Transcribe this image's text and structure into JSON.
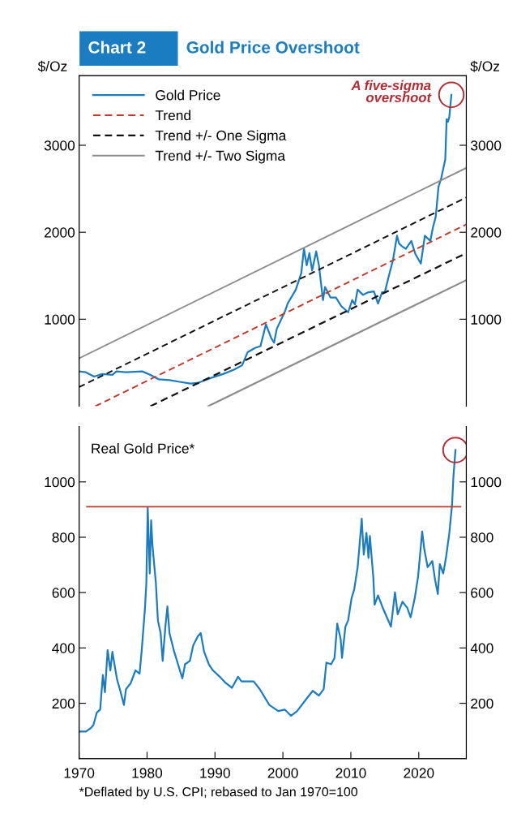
{
  "chart_data": [
    {
      "type": "line",
      "title": "Gold Price Overshoot",
      "annotations": [
        "Chart 2",
        {
          "text": "A five-sigma\novershoot",
          "x": 2024.8,
          "y": 3580
        }
      ],
      "ylabel": "$/Oz",
      "y2label": "$/Oz",
      "xlim": [
        1970,
        2027
      ],
      "ylim": [
        0,
        3800
      ],
      "yticks": [
        1000,
        2000,
        3000
      ],
      "y2lim": [
        0,
        3800
      ],
      "y2ticks": [
        1000,
        2000,
        3000
      ],
      "tick_labels": "y",
      "legend": "top left",
      "grid": false,
      "series": [
        {
          "name": "Gold Price",
          "color": "#1a7cc1",
          "line_style": "solid",
          "x": [
            1970.0,
            1971.0,
            1972.2,
            1973.4,
            1974.9,
            1975.5,
            1976.9,
            1979.3,
            1980.5,
            1981.7,
            1983.3,
            1984.8,
            1986.4,
            1987.6,
            1989.6,
            1991.2,
            1992.8,
            1994.0,
            1994.8,
            1995.9,
            1996.7,
            1997.5,
            1998.3,
            1998.7,
            1999.1,
            2000.3,
            2000.7,
            2001.9,
            2002.7,
            2003.1,
            2003.5,
            2003.9,
            2004.3,
            2004.9,
            2005.3,
            2005.9,
            2006.2,
            2007.0,
            2007.8,
            2008.6,
            2009.6,
            2010.2,
            2010.6,
            2011.0,
            2011.8,
            2012.6,
            2013.4,
            2014.0,
            2014.6,
            2015.0,
            2015.6,
            2016.2,
            2016.8,
            2017.1,
            2017.5,
            2018.1,
            2018.9,
            2019.5,
            2020.3,
            2020.9,
            2021.7,
            2022.1,
            2022.5,
            2022.9,
            2023.3,
            2023.6,
            2023.9,
            2024.1,
            2024.3,
            2024.5,
            2024.8
          ],
          "values": [
            400,
            390,
            340,
            370,
            360,
            400,
            390,
            400,
            360,
            310,
            300,
            280,
            260,
            270,
            330,
            370,
            420,
            470,
            620,
            670,
            690,
            940,
            780,
            730,
            890,
            1090,
            1180,
            1340,
            1530,
            1810,
            1620,
            1760,
            1560,
            1780,
            1620,
            1220,
            1370,
            1250,
            1250,
            1150,
            1080,
            1220,
            1170,
            1340,
            1280,
            1310,
            1320,
            1180,
            1310,
            1310,
            1500,
            1680,
            1960,
            1870,
            1840,
            1810,
            1900,
            1750,
            1640,
            1960,
            1900,
            2060,
            2180,
            2520,
            2620,
            2730,
            2840,
            3300,
            3270,
            3330,
            3580
          ]
        },
        {
          "name": "Trend",
          "color": "#c0392b",
          "line_style": "dashed",
          "x": [
            1972.4,
            2027
          ],
          "values": [
            0,
            2090
          ]
        },
        {
          "name": "Trend +/- One Sigma",
          "color": "#111111",
          "line_style": "dashed",
          "x": [
            1970,
            2027
          ],
          "values": [
            220,
            2400
          ]
        },
        {
          "color": "#111111",
          "line_style": "dashed",
          "x": [
            1980.5,
            2027
          ],
          "values": [
            0,
            1760
          ]
        },
        {
          "name": "Trend +/- Two Sigma",
          "color": "#8c8c8c",
          "line_style": "solid",
          "x": [
            1970,
            2027
          ],
          "values": [
            550,
            2740
          ]
        },
        {
          "color": "#8c8c8c",
          "line_style": "solid",
          "x": [
            1989.0,
            2027
          ],
          "values": [
            0,
            1450
          ]
        }
      ]
    },
    {
      "type": "line",
      "title": "Real Gold Price*",
      "annotations": [
        "*Deflated by U.S. CPI; rebased to Jan 1970=100"
      ],
      "xlim": [
        1970,
        2027
      ],
      "xticks": [
        1970,
        1980,
        1990,
        2000,
        2010,
        2020
      ],
      "ylim": [
        0,
        1200
      ],
      "yticks": [
        200,
        400,
        600,
        800,
        1000
      ],
      "y2lim": [
        0,
        1200
      ],
      "y2ticks": [
        200,
        400,
        600,
        800,
        1000
      ],
      "grid": false,
      "legend": false,
      "ref_lines": [
        {
          "axis": "y",
          "value": 910,
          "color": "#c0392b",
          "line_style": "solid"
        }
      ],
      "series": [
        {
          "color": "#1a7cc1",
          "line_style": "solid",
          "x": [
            1970.0,
            1971.0,
            1971.7,
            1972.1,
            1972.6,
            1973.1,
            1973.3,
            1973.5,
            1973.8,
            1974.2,
            1974.6,
            1974.9,
            1975.2,
            1975.6,
            1976.0,
            1976.6,
            1976.9,
            1977.6,
            1978.3,
            1978.9,
            1979.2,
            1979.7,
            1979.9,
            1980.1,
            1980.4,
            1980.6,
            1980.8,
            1981.3,
            1981.6,
            1982.0,
            1982.3,
            1982.7,
            1983.0,
            1983.3,
            1984.0,
            1984.7,
            1985.2,
            1985.6,
            1986.3,
            1986.8,
            1987.5,
            1987.9,
            1988.4,
            1989.1,
            1989.7,
            1990.7,
            1991.6,
            1992.5,
            1993.4,
            1993.9,
            1995.7,
            1996.6,
            1998.0,
            1999.3,
            2000.3,
            2001.2,
            2002.1,
            2003.5,
            2004.4,
            2005.3,
            2006.0,
            2006.4,
            2007.1,
            2007.6,
            2008.0,
            2008.5,
            2008.7,
            2009.2,
            2009.6,
            2010.1,
            2010.5,
            2011.0,
            2011.2,
            2011.6,
            2011.9,
            2012.3,
            2012.6,
            2012.8,
            2013.3,
            2013.5,
            2014.0,
            2014.7,
            2015.3,
            2015.9,
            2016.5,
            2016.9,
            2017.6,
            2018.3,
            2018.8,
            2019.4,
            2019.9,
            2020.5,
            2020.8,
            2021.3,
            2022.0,
            2022.4,
            2022.8,
            2023.1,
            2023.6,
            2024.0,
            2024.5,
            2024.9,
            2025.1,
            2025.4
          ],
          "values": [
            98,
            98,
            110,
            121,
            166,
            177,
            240,
            302,
            240,
            392,
            319,
            386,
            341,
            285,
            251,
            194,
            251,
            273,
            319,
            307,
            386,
            545,
            635,
            906,
            669,
            861,
            771,
            635,
            499,
            454,
            353,
            477,
            550,
            454,
            386,
            330,
            290,
            341,
            353,
            409,
            443,
            454,
            386,
            341,
            319,
            296,
            273,
            256,
            296,
            279,
            279,
            251,
            194,
            172,
            177,
            155,
            172,
            217,
            245,
            228,
            251,
            347,
            341,
            364,
            488,
            432,
            364,
            477,
            499,
            579,
            612,
            692,
            748,
            867,
            737,
            816,
            725,
            805,
            658,
            556,
            590,
            545,
            511,
            477,
            601,
            522,
            567,
            545,
            511,
            579,
            658,
            821,
            759,
            692,
            714,
            646,
            595,
            703,
            669,
            725,
            816,
            918,
            1019,
            1115
          ]
        }
      ]
    }
  ]
}
